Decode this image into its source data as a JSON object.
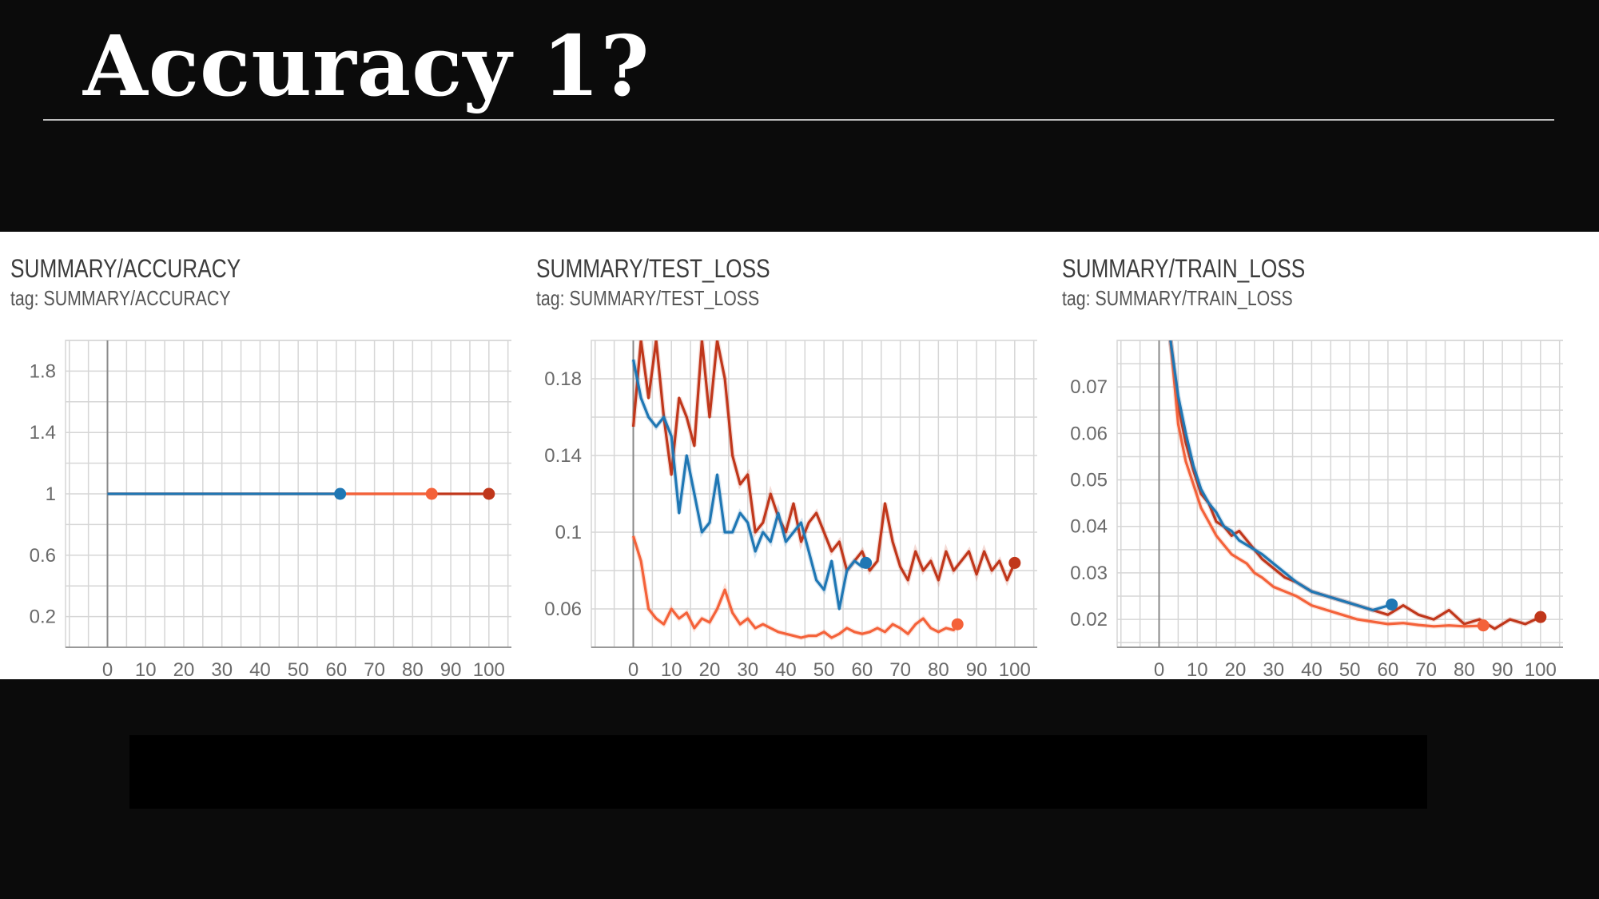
{
  "slide": {
    "title": "Accuracy 1?"
  },
  "colors": {
    "background": "#0b0b0b",
    "panel": "#ffffff",
    "grid": "#d6d6d6",
    "axis": "#999999",
    "blue": "#1f77b4",
    "orange": "#f4623a",
    "red": "#c0371b"
  },
  "chart_data": [
    {
      "type": "line",
      "title": "SUMMARY/ACCURACY",
      "tag": "tag: SUMMARY/ACCURACY",
      "xlabel": "",
      "ylabel": "",
      "xlim": [
        -11,
        108
      ],
      "ylim": [
        -0.0,
        2.0
      ],
      "x_ticks": [
        0,
        10,
        20,
        30,
        40,
        50,
        60,
        70,
        80,
        90,
        100
      ],
      "y_ticks": [
        1.8,
        1.4,
        1,
        0.6,
        0.2
      ],
      "grid": true,
      "series": [
        {
          "color": "#c0371b",
          "x": [
            0,
            100
          ],
          "y": [
            1,
            1
          ]
        },
        {
          "color": "#f4623a",
          "x": [
            0,
            85
          ],
          "y": [
            1,
            1
          ]
        },
        {
          "color": "#1f77b4",
          "x": [
            0,
            61
          ],
          "y": [
            1,
            1
          ]
        }
      ]
    },
    {
      "type": "line",
      "title": "SUMMARY/TEST_LOSS",
      "tag": "tag: SUMMARY/TEST_LOSS",
      "xlabel": "",
      "ylabel": "",
      "xlim": [
        -11,
        108
      ],
      "ylim": [
        0.04,
        0.2
      ],
      "x_ticks": [
        0,
        10,
        20,
        30,
        40,
        50,
        60,
        70,
        80,
        90,
        100
      ],
      "y_ticks": [
        0.18,
        0.14,
        0.1,
        0.06
      ],
      "grid": true,
      "series": [
        {
          "color": "#c0371b",
          "x": [
            0,
            2,
            4,
            6,
            8,
            10,
            12,
            14,
            16,
            18,
            20,
            22,
            24,
            26,
            28,
            30,
            32,
            34,
            36,
            38,
            40,
            42,
            44,
            46,
            48,
            50,
            52,
            54,
            56,
            58,
            60,
            62,
            64,
            66,
            68,
            70,
            72,
            74,
            76,
            78,
            80,
            82,
            84,
            86,
            88,
            90,
            92,
            94,
            96,
            98,
            100
          ],
          "y": [
            0.155,
            0.2,
            0.17,
            0.2,
            0.16,
            0.13,
            0.17,
            0.16,
            0.145,
            0.2,
            0.16,
            0.2,
            0.18,
            0.14,
            0.125,
            0.13,
            0.1,
            0.105,
            0.12,
            0.108,
            0.1,
            0.115,
            0.095,
            0.105,
            0.11,
            0.1,
            0.09,
            0.095,
            0.08,
            0.085,
            0.09,
            0.08,
            0.085,
            0.115,
            0.095,
            0.082,
            0.075,
            0.09,
            0.08,
            0.085,
            0.075,
            0.09,
            0.08,
            0.085,
            0.09,
            0.078,
            0.09,
            0.08,
            0.085,
            0.075,
            0.084
          ]
        },
        {
          "color": "#f4623a",
          "x": [
            0,
            2,
            4,
            6,
            8,
            10,
            12,
            14,
            16,
            18,
            20,
            22,
            24,
            26,
            28,
            30,
            32,
            34,
            36,
            38,
            40,
            42,
            44,
            46,
            48,
            50,
            52,
            54,
            56,
            58,
            60,
            62,
            64,
            66,
            68,
            70,
            72,
            74,
            76,
            78,
            80,
            82,
            84,
            85
          ],
          "y": [
            0.098,
            0.085,
            0.06,
            0.055,
            0.052,
            0.06,
            0.055,
            0.058,
            0.05,
            0.055,
            0.053,
            0.06,
            0.07,
            0.058,
            0.052,
            0.055,
            0.05,
            0.052,
            0.05,
            0.048,
            0.047,
            0.046,
            0.045,
            0.046,
            0.046,
            0.048,
            0.045,
            0.047,
            0.05,
            0.048,
            0.047,
            0.048,
            0.05,
            0.048,
            0.052,
            0.05,
            0.047,
            0.052,
            0.055,
            0.05,
            0.048,
            0.05,
            0.049,
            0.052
          ]
        },
        {
          "color": "#1f77b4",
          "x": [
            0,
            2,
            4,
            6,
            8,
            10,
            12,
            14,
            16,
            18,
            20,
            22,
            24,
            26,
            28,
            30,
            32,
            34,
            36,
            38,
            40,
            42,
            44,
            46,
            48,
            50,
            52,
            54,
            56,
            58,
            60,
            61
          ],
          "y": [
            0.19,
            0.17,
            0.16,
            0.155,
            0.16,
            0.15,
            0.11,
            0.14,
            0.12,
            0.1,
            0.105,
            0.13,
            0.1,
            0.1,
            0.11,
            0.105,
            0.09,
            0.1,
            0.095,
            0.11,
            0.095,
            0.1,
            0.105,
            0.09,
            0.075,
            0.07,
            0.085,
            0.06,
            0.08,
            0.085,
            0.082,
            0.084
          ]
        }
      ]
    },
    {
      "type": "line",
      "title": "SUMMARY/TRAIN_LOSS",
      "tag": "tag: SUMMARY/TRAIN_LOSS",
      "xlabel": "",
      "ylabel": "",
      "xlim": [
        -11,
        108
      ],
      "ylim": [
        0.014,
        0.08
      ],
      "x_ticks": [
        0,
        10,
        20,
        30,
        40,
        50,
        60,
        70,
        80,
        90,
        100
      ],
      "y_ticks": [
        0.07,
        0.06,
        0.05,
        0.04,
        0.03,
        0.02
      ],
      "grid": true,
      "series": [
        {
          "color": "#c0371b",
          "x": [
            3,
            5,
            7,
            9,
            11,
            13,
            15,
            17,
            19,
            21,
            23,
            25,
            27,
            30,
            33,
            36,
            40,
            44,
            48,
            52,
            56,
            60,
            64,
            68,
            72,
            76,
            80,
            84,
            88,
            92,
            96,
            100
          ],
          "y": [
            0.08,
            0.066,
            0.058,
            0.052,
            0.047,
            0.045,
            0.041,
            0.04,
            0.038,
            0.039,
            0.037,
            0.035,
            0.033,
            0.031,
            0.029,
            0.028,
            0.026,
            0.025,
            0.024,
            0.023,
            0.022,
            0.021,
            0.023,
            0.021,
            0.02,
            0.022,
            0.019,
            0.02,
            0.018,
            0.02,
            0.019,
            0.0205
          ]
        },
        {
          "color": "#f4623a",
          "x": [
            3,
            5,
            7,
            9,
            11,
            13,
            15,
            17,
            19,
            21,
            23,
            25,
            27,
            30,
            33,
            36,
            40,
            44,
            48,
            52,
            56,
            60,
            64,
            68,
            72,
            76,
            80,
            84,
            85
          ],
          "y": [
            0.08,
            0.062,
            0.054,
            0.049,
            0.044,
            0.041,
            0.038,
            0.036,
            0.034,
            0.033,
            0.032,
            0.03,
            0.029,
            0.027,
            0.026,
            0.025,
            0.023,
            0.022,
            0.021,
            0.02,
            0.0195,
            0.019,
            0.0192,
            0.0188,
            0.0185,
            0.0187,
            0.0185,
            0.0186,
            0.0187
          ]
        },
        {
          "color": "#1f77b4",
          "x": [
            3,
            5,
            7,
            9,
            11,
            13,
            15,
            17,
            19,
            21,
            23,
            25,
            27,
            30,
            33,
            36,
            40,
            44,
            48,
            52,
            56,
            61
          ],
          "y": [
            0.08,
            0.068,
            0.06,
            0.053,
            0.048,
            0.045,
            0.043,
            0.04,
            0.039,
            0.037,
            0.036,
            0.035,
            0.034,
            0.032,
            0.03,
            0.028,
            0.026,
            0.025,
            0.024,
            0.023,
            0.022,
            0.0232
          ]
        }
      ]
    }
  ]
}
